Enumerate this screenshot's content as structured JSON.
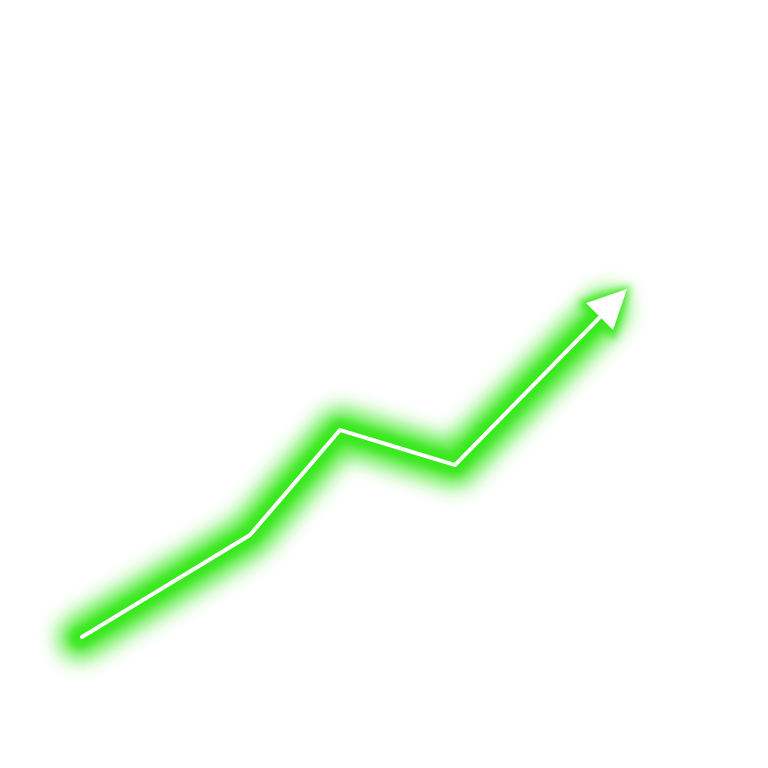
{
  "graphic": {
    "name": "neon-upward-trend-arrow",
    "glow_color": "#39e81f",
    "core_color": "#ffffff",
    "background_color": "#ffffff"
  }
}
